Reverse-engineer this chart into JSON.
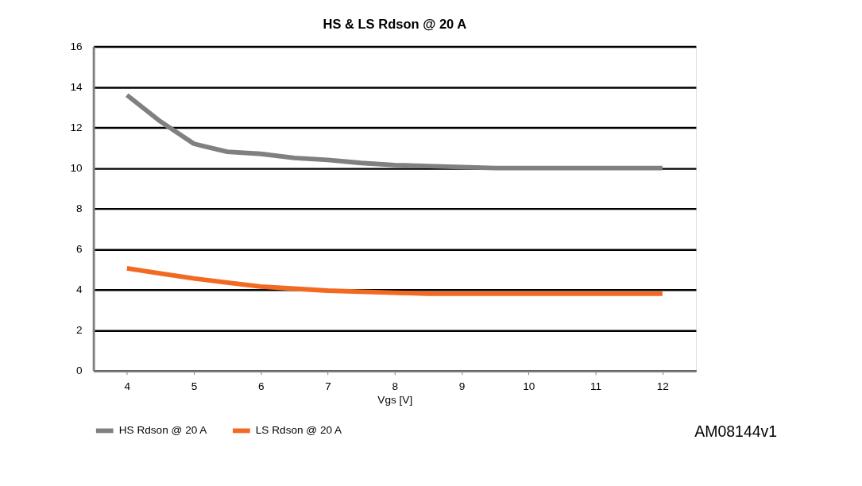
{
  "chart_data": {
    "type": "line",
    "title": "HS & LS Rdson @ 20 A",
    "xlabel": "Vgs [V]",
    "x": [
      4,
      4.5,
      5,
      5.5,
      6,
      6.5,
      7,
      7.5,
      8,
      8.5,
      9,
      9.5,
      10,
      10.5,
      11,
      11.5,
      12
    ],
    "series": [
      {
        "name": "HS Rdson @ 20 A",
        "color": "#808080",
        "values": [
          13.6,
          12.3,
          11.2,
          10.8,
          10.7,
          10.5,
          10.4,
          10.25,
          10.15,
          10.1,
          10.05,
          10,
          10,
          10,
          10,
          10,
          10
        ]
      },
      {
        "name": "LS Rdson @ 20 A",
        "color": "#f26a21",
        "values": [
          5.05,
          4.8,
          4.55,
          4.35,
          4.15,
          4.05,
          3.95,
          3.9,
          3.85,
          3.8,
          3.8,
          3.8,
          3.8,
          3.8,
          3.8,
          3.8,
          3.8
        ]
      }
    ],
    "xlim": [
      3.5,
      12.5
    ],
    "xticks": [
      4,
      5,
      6,
      7,
      8,
      9,
      10,
      11,
      12
    ],
    "ylim": [
      0,
      16
    ],
    "yticks": [
      0,
      2,
      4,
      6,
      8,
      10,
      12,
      14,
      16
    ],
    "grid": "y",
    "legend": "bottom",
    "marker": "none",
    "line_style": "solid",
    "annotations": [
      "AM08144v1"
    ]
  }
}
